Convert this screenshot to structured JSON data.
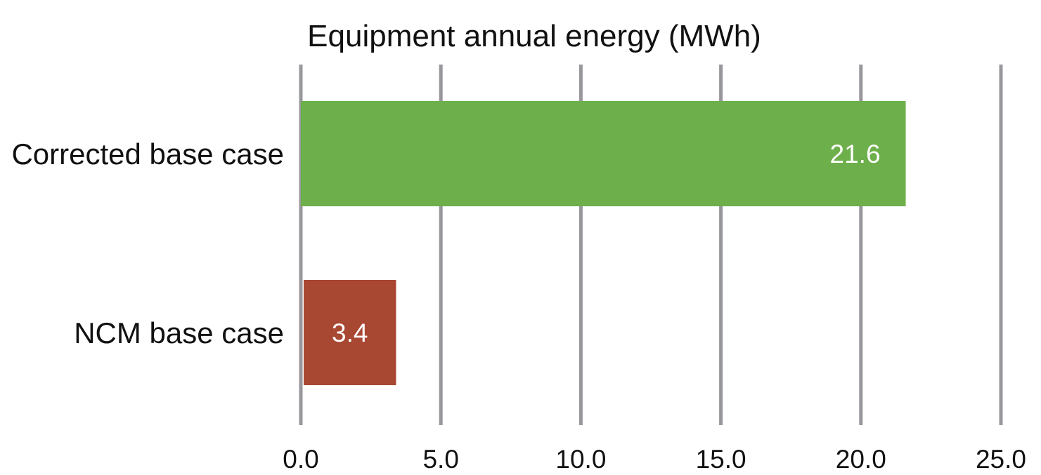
{
  "chart_data": {
    "type": "bar",
    "orientation": "horizontal",
    "title": "Equipment annual energy (MWh)",
    "xlabel": "",
    "ylabel": "",
    "categories": [
      "Corrected base case",
      "NCM base case"
    ],
    "values": [
      21.6,
      3.4
    ],
    "data_labels": [
      "21.6",
      "3.4"
    ],
    "bar_colors": [
      "#6daf4a",
      "#a84732"
    ],
    "xlim": [
      0,
      25
    ],
    "x_ticks": [
      0,
      5,
      10,
      15,
      20,
      25
    ],
    "x_tick_labels": [
      "0.0",
      "5.0",
      "10.0",
      "15.0",
      "20.0",
      "25.0"
    ],
    "grid": true,
    "grid_color": "#98989c",
    "legend": "none"
  }
}
